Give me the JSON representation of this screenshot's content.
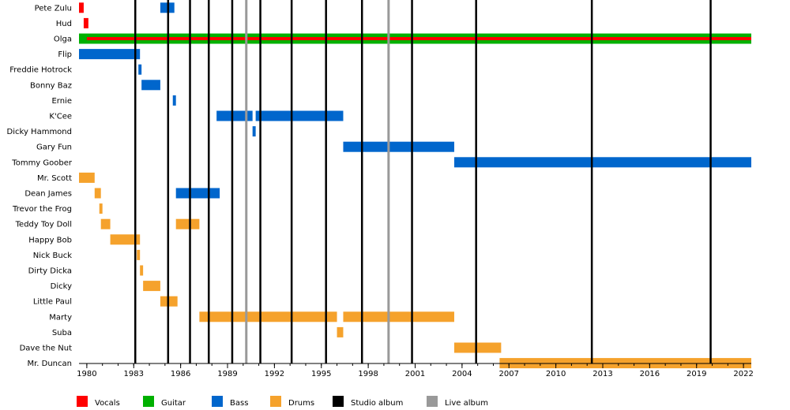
{
  "chart_data": {
    "type": "timeline",
    "title": "",
    "x_range": [
      1979.5,
      2022.5
    ],
    "x_ticks": [
      1980,
      1983,
      1986,
      1989,
      1992,
      1995,
      1998,
      2001,
      2004,
      2007,
      2010,
      2013,
      2016,
      2019,
      2022
    ],
    "x_tick_labels": [
      "1980",
      "1983",
      "1986",
      "1989",
      "1992",
      "1995",
      "1998",
      "2001",
      "2004",
      "2007",
      "2010",
      "2013",
      "2016",
      "2019",
      "2022"
    ],
    "members": [
      "Pete Zulu",
      "Hud",
      "Olga",
      "Flip",
      "Freddie Hotrock",
      "Bonny Baz",
      "Ernie",
      "K'Cee",
      "Dicky Hammond",
      "Gary Fun",
      "Tommy Goober",
      "Mr. Scott",
      "Dean James",
      "Trevor the Frog",
      "Teddy Toy Doll",
      "Happy Bob",
      "Nick Buck",
      "Dirty Dicka",
      "Dicky",
      "Little Paul",
      "Marty",
      "Suba",
      "Dave the Nut",
      "Mr. Duncan"
    ],
    "role_colors": {
      "Vocals": "#ff0000",
      "Guitar": "#00b000",
      "Bass": "#0066cc",
      "Drums": "#f5a22c"
    },
    "bars": [
      {
        "member": "Pete Zulu",
        "role": "Vocals",
        "start": 1979.5,
        "end": 1979.8
      },
      {
        "member": "Pete Zulu",
        "role": "Bass",
        "start": 1984.7,
        "end": 1985.6
      },
      {
        "member": "Hud",
        "role": "Vocals",
        "start": 1979.8,
        "end": 1980.1
      },
      {
        "member": "Olga",
        "role": "Guitar",
        "start": 1979.5,
        "end": 2022.5
      },
      {
        "member": "Olga",
        "role": "Vocals",
        "start": 1980.0,
        "end": 2022.5
      },
      {
        "member": "Flip",
        "role": "Bass",
        "start": 1979.5,
        "end": 1983.4
      },
      {
        "member": "Freddie Hotrock",
        "role": "Bass",
        "start": 1983.3,
        "end": 1983.5
      },
      {
        "member": "Bonny Baz",
        "role": "Bass",
        "start": 1983.5,
        "end": 1984.7
      },
      {
        "member": "Ernie",
        "role": "Bass",
        "start": 1985.5,
        "end": 1985.7
      },
      {
        "member": "K'Cee",
        "role": "Bass",
        "start": 1988.3,
        "end": 1990.6
      },
      {
        "member": "K'Cee",
        "role": "Bass",
        "start": 1990.8,
        "end": 1996.4
      },
      {
        "member": "Dicky Hammond",
        "role": "Bass",
        "start": 1990.6,
        "end": 1990.8
      },
      {
        "member": "Gary Fun",
        "role": "Bass",
        "start": 1996.4,
        "end": 2003.5
      },
      {
        "member": "Tommy Goober",
        "role": "Bass",
        "start": 2003.5,
        "end": 2022.5
      },
      {
        "member": "Mr. Scott",
        "role": "Drums",
        "start": 1979.5,
        "end": 1980.5
      },
      {
        "member": "Dean James",
        "role": "Drums",
        "start": 1980.5,
        "end": 1980.9
      },
      {
        "member": "Dean James",
        "role": "Bass",
        "start": 1985.7,
        "end": 1988.5
      },
      {
        "member": "Trevor the Frog",
        "role": "Drums",
        "start": 1980.8,
        "end": 1981.0
      },
      {
        "member": "Teddy Toy Doll",
        "role": "Drums",
        "start": 1980.9,
        "end": 1981.5
      },
      {
        "member": "Teddy Toy Doll",
        "role": "Drums",
        "start": 1985.7,
        "end": 1987.2
      },
      {
        "member": "Happy Bob",
        "role": "Drums",
        "start": 1981.5,
        "end": 1983.4
      },
      {
        "member": "Nick Buck",
        "role": "Drums",
        "start": 1983.2,
        "end": 1983.4
      },
      {
        "member": "Dirty Dicka",
        "role": "Drums",
        "start": 1983.4,
        "end": 1983.6
      },
      {
        "member": "Dicky",
        "role": "Drums",
        "start": 1983.6,
        "end": 1984.7
      },
      {
        "member": "Little Paul",
        "role": "Drums",
        "start": 1984.7,
        "end": 1985.8
      },
      {
        "member": "Marty",
        "role": "Drums",
        "start": 1987.2,
        "end": 1996.0
      },
      {
        "member": "Marty",
        "role": "Drums",
        "start": 1996.4,
        "end": 2003.5
      },
      {
        "member": "Suba",
        "role": "Drums",
        "start": 1996.0,
        "end": 1996.4
      },
      {
        "member": "Dave the Nut",
        "role": "Drums",
        "start": 2003.5,
        "end": 2006.5
      },
      {
        "member": "Mr. Duncan",
        "role": "Drums",
        "start": 2006.4,
        "end": 2022.5
      }
    ],
    "studio_albums": [
      1983.1,
      1985.2,
      1986.6,
      1987.8,
      1989.3,
      1991.1,
      1993.1,
      1995.3,
      1997.6,
      2000.8,
      2004.9,
      2012.3,
      2019.9
    ],
    "live_albums": [
      1990.2,
      1999.3
    ],
    "legend": [
      {
        "label": "Vocals",
        "color": "#ff0000"
      },
      {
        "label": "Guitar",
        "color": "#00b000"
      },
      {
        "label": "Bass",
        "color": "#0066cc"
      },
      {
        "label": "Drums",
        "color": "#f5a22c"
      },
      {
        "label": "Studio album",
        "color": "#000000"
      },
      {
        "label": "Live album",
        "color": "#999999"
      }
    ],
    "legend_position": "bottom",
    "grid": false
  }
}
